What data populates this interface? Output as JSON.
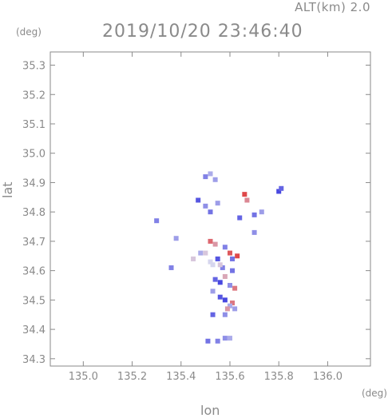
{
  "header": {
    "altitude_label": "ALT(km) 2.0",
    "timestamp": "2019/10/20 23:46:40"
  },
  "units": {
    "y": "(deg)",
    "x": "(deg)"
  },
  "chart_data": {
    "type": "scatter",
    "title": "2019/10/20 23:46:40",
    "xlabel": "lon",
    "ylabel": "lat",
    "xlim": [
      134.865,
      136.175
    ],
    "ylim": [
      34.275,
      35.345
    ],
    "x_ticks": [
      "135.0",
      "135.2",
      "135.4",
      "135.6",
      "135.8",
      "136.0"
    ],
    "y_ticks": [
      "34.3",
      "34.4",
      "34.5",
      "34.6",
      "34.7",
      "34.8",
      "34.9",
      "35.0",
      "35.1",
      "35.2",
      "35.3"
    ],
    "grid": false,
    "colors": {
      "axis": "#8a8a8a",
      "negative": "#4848e0",
      "positive": "#e03838",
      "neutral": "#d6d6ee"
    },
    "series": [
      {
        "values": [
          [
            135.5,
            34.92,
            -0.6
          ],
          [
            135.54,
            34.91,
            -0.4
          ],
          [
            135.52,
            34.93,
            -0.3
          ],
          [
            135.47,
            34.84,
            -0.9
          ],
          [
            135.5,
            34.82,
            -0.5
          ],
          [
            135.52,
            34.8,
            -0.7
          ],
          [
            135.55,
            34.83,
            -0.4
          ],
          [
            135.3,
            34.77,
            -0.6
          ],
          [
            135.66,
            34.86,
            0.9
          ],
          [
            135.67,
            34.84,
            0.5
          ],
          [
            135.8,
            34.87,
            -1.0
          ],
          [
            135.81,
            34.88,
            -0.8
          ],
          [
            135.64,
            34.78,
            -0.8
          ],
          [
            135.7,
            34.79,
            -0.7
          ],
          [
            135.73,
            34.8,
            -0.4
          ],
          [
            135.7,
            34.73,
            -0.5
          ],
          [
            135.38,
            34.71,
            -0.4
          ],
          [
            135.52,
            34.7,
            0.7
          ],
          [
            135.54,
            34.69,
            0.4
          ],
          [
            135.58,
            34.68,
            -0.6
          ],
          [
            135.6,
            34.66,
            0.8
          ],
          [
            135.63,
            34.65,
            0.9
          ],
          [
            135.61,
            34.64,
            -0.7
          ],
          [
            135.55,
            34.64,
            -0.9
          ],
          [
            135.48,
            34.66,
            -0.3
          ],
          [
            135.45,
            34.64,
            0.1
          ],
          [
            135.52,
            34.63,
            0.0
          ],
          [
            135.5,
            34.66,
            0.1
          ],
          [
            135.57,
            34.61,
            -0.6
          ],
          [
            135.61,
            34.6,
            -0.7
          ],
          [
            135.58,
            34.58,
            0.3
          ],
          [
            135.54,
            34.57,
            -0.8
          ],
          [
            135.56,
            34.56,
            -1.0
          ],
          [
            135.6,
            34.55,
            -0.5
          ],
          [
            135.62,
            34.54,
            0.6
          ],
          [
            135.53,
            34.53,
            -0.4
          ],
          [
            135.56,
            34.51,
            -0.9
          ],
          [
            135.58,
            34.5,
            -1.0
          ],
          [
            135.61,
            34.49,
            0.6
          ],
          [
            135.6,
            34.48,
            -0.3
          ],
          [
            135.59,
            34.47,
            0.4
          ],
          [
            135.53,
            34.45,
            -0.8
          ],
          [
            135.58,
            34.45,
            -0.5
          ],
          [
            135.62,
            34.47,
            -0.4
          ],
          [
            135.36,
            34.61,
            -0.6
          ],
          [
            135.51,
            34.36,
            -0.7
          ],
          [
            135.55,
            34.36,
            -0.6
          ],
          [
            135.58,
            34.37,
            -0.5
          ],
          [
            135.6,
            34.37,
            -0.3
          ],
          [
            135.53,
            34.62,
            0.0
          ],
          [
            135.56,
            34.62,
            0.1
          ]
        ]
      }
    ]
  }
}
